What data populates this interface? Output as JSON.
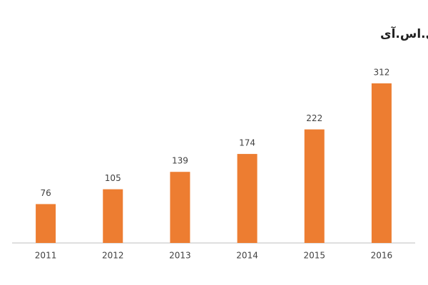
{
  "chart_data": {
    "type": "bar",
    "title": "تعداد مقالات یک درصد برتر کشور – آی.اس.آی",
    "categories": [
      "2011",
      "2012",
      "2013",
      "2014",
      "2015",
      "2016"
    ],
    "values": [
      76,
      105,
      139,
      174,
      222,
      312
    ],
    "color": "#ed7d31"
  }
}
